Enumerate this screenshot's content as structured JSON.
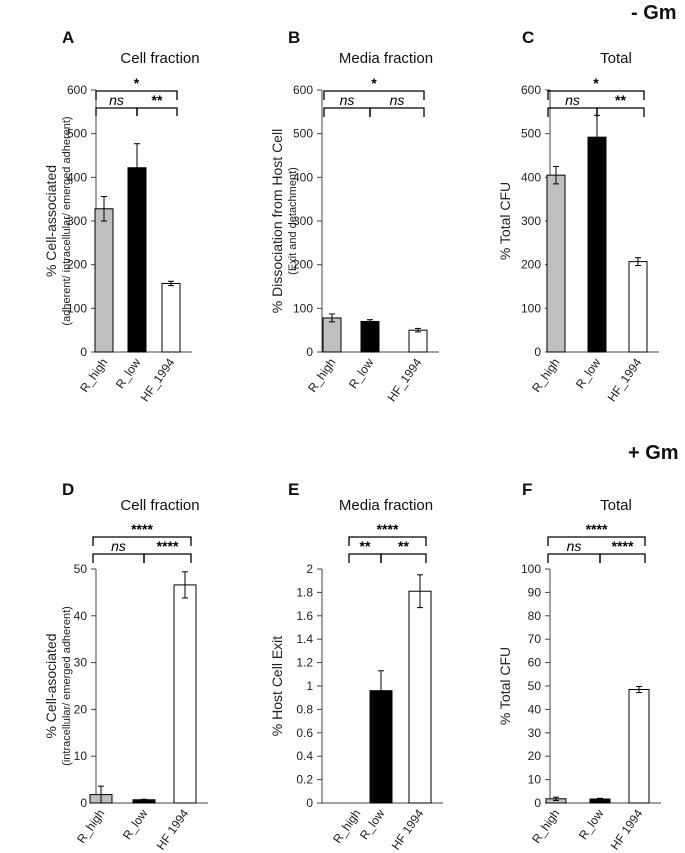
{
  "figure": {
    "top_condition": "- Gm",
    "bottom_condition": "+ Gm"
  },
  "chart_data": [
    {
      "type": "bar",
      "panel": "A",
      "title": "Cell fraction",
      "ylabel": "% Cell-associated",
      "ylabel2": "(adherent/ intracellular/ emerged adherent)",
      "categories": [
        "R_high",
        "R_low",
        "HF_1994"
      ],
      "values": [
        328,
        422,
        157
      ],
      "errors": [
        28,
        55,
        5
      ],
      "colors": [
        "#bfbfbf",
        "#000000",
        "#ffffff"
      ],
      "ylim": [
        0,
        600
      ],
      "ticks": [
        0,
        100,
        200,
        300,
        400,
        500,
        600
      ],
      "sig": [
        {
          "from": 0,
          "to": 2,
          "label": "*",
          "level": 2
        },
        {
          "from": 0,
          "to": 1,
          "label": "ns",
          "level": 1,
          "italic": true
        },
        {
          "from": 1,
          "to": 2,
          "label": "**",
          "level": 1
        }
      ]
    },
    {
      "type": "bar",
      "panel": "B",
      "title": "Media fraction",
      "ylabel": "% Dissociation from Host Cell",
      "ylabel2": "(Exit and detachment)",
      "categories": [
        "R_high",
        "R_low",
        "HF_1994"
      ],
      "values": [
        78,
        70,
        50
      ],
      "errors": [
        9,
        4,
        4
      ],
      "colors": [
        "#bfbfbf",
        "#000000",
        "#ffffff"
      ],
      "ylim": [
        0,
        600
      ],
      "ticks": [
        0,
        100,
        200,
        300,
        400,
        500,
        600
      ],
      "sig": [
        {
          "from": 0,
          "to": 2,
          "label": "*",
          "level": 2
        },
        {
          "from": 0,
          "to": 1,
          "label": "ns",
          "level": 1,
          "italic": true
        },
        {
          "from": 1,
          "to": 2,
          "label": "ns",
          "level": 1,
          "italic": true
        }
      ]
    },
    {
      "type": "bar",
      "panel": "C",
      "title": "Total",
      "ylabel": "% Total CFU",
      "ylabel2": "",
      "categories": [
        "R_high",
        "R_low",
        "HF_1994"
      ],
      "values": [
        405,
        492,
        207
      ],
      "errors": [
        20,
        50,
        9
      ],
      "colors": [
        "#bfbfbf",
        "#000000",
        "#ffffff"
      ],
      "ylim": [
        0,
        600
      ],
      "ticks": [
        0,
        100,
        200,
        300,
        400,
        500,
        600
      ],
      "sig": [
        {
          "from": 0,
          "to": 2,
          "label": "*",
          "level": 2
        },
        {
          "from": 0,
          "to": 1,
          "label": "ns",
          "level": 1,
          "italic": true
        },
        {
          "from": 1,
          "to": 2,
          "label": "**",
          "level": 1
        }
      ]
    },
    {
      "type": "bar",
      "panel": "D",
      "title": "Cell fraction",
      "ylabel": "% Cell-asociated",
      "ylabel2": "(intracellular/ emerged adherent)",
      "categories": [
        "R_high",
        "R_low",
        "HF 1994"
      ],
      "values": [
        1.8,
        0.7,
        46.6
      ],
      "errors": [
        1.8,
        0.1,
        2.8
      ],
      "colors": [
        "#bfbfbf",
        "#000000",
        "#ffffff"
      ],
      "ylim": [
        0,
        50
      ],
      "ticks": [
        0,
        10,
        20,
        30,
        40,
        50
      ],
      "sig": [
        {
          "from": 0,
          "to": 2,
          "label": "****",
          "level": 2
        },
        {
          "from": 0,
          "to": 1,
          "label": "ns",
          "level": 1,
          "italic": true
        },
        {
          "from": 1,
          "to": 2,
          "label": "****",
          "level": 1
        }
      ]
    },
    {
      "type": "bar",
      "panel": "E",
      "title": "Media fraction",
      "ylabel": "% Host Cell Exit",
      "ylabel2": "",
      "categories": [
        "R_high",
        "R_low",
        "HF 1994"
      ],
      "values": [
        0,
        0.96,
        1.81
      ],
      "errors": [
        0,
        0.17,
        0.14
      ],
      "colors": [
        "#bfbfbf",
        "#000000",
        "#ffffff"
      ],
      "ylim": [
        0,
        2
      ],
      "ticks": [
        0,
        0.2,
        0.4,
        0.6,
        0.8,
        1,
        1.2,
        1.4,
        1.6,
        1.8,
        2
      ],
      "ticklabels": [
        "0",
        "0.2",
        "0.4",
        "0.6",
        "0.8",
        "1",
        "1.2",
        "1.4",
        "1.6",
        "1.8",
        "2"
      ],
      "sig": [
        {
          "from": 0,
          "to": 2,
          "label": "****",
          "level": 2
        },
        {
          "from": 0,
          "to": 1,
          "label": "**",
          "level": 1
        },
        {
          "from": 1,
          "to": 2,
          "label": "**",
          "level": 1
        }
      ]
    },
    {
      "type": "bar",
      "panel": "F",
      "title": "Total",
      "ylabel": "% Total CFU",
      "ylabel2": "",
      "categories": [
        "R_high",
        "R_low",
        "HF 1994"
      ],
      "values": [
        1.8,
        1.7,
        48.5
      ],
      "errors": [
        0.7,
        0.3,
        1.3
      ],
      "colors": [
        "#bfbfbf",
        "#000000",
        "#ffffff"
      ],
      "ylim": [
        0,
        100
      ],
      "ticks": [
        0,
        10,
        20,
        30,
        40,
        50,
        60,
        70,
        80,
        90,
        100
      ],
      "sig": [
        {
          "from": 0,
          "to": 2,
          "label": "****",
          "level": 2
        },
        {
          "from": 0,
          "to": 1,
          "label": "ns",
          "level": 1,
          "italic": true
        },
        {
          "from": 1,
          "to": 2,
          "label": "****",
          "level": 1
        }
      ]
    }
  ]
}
